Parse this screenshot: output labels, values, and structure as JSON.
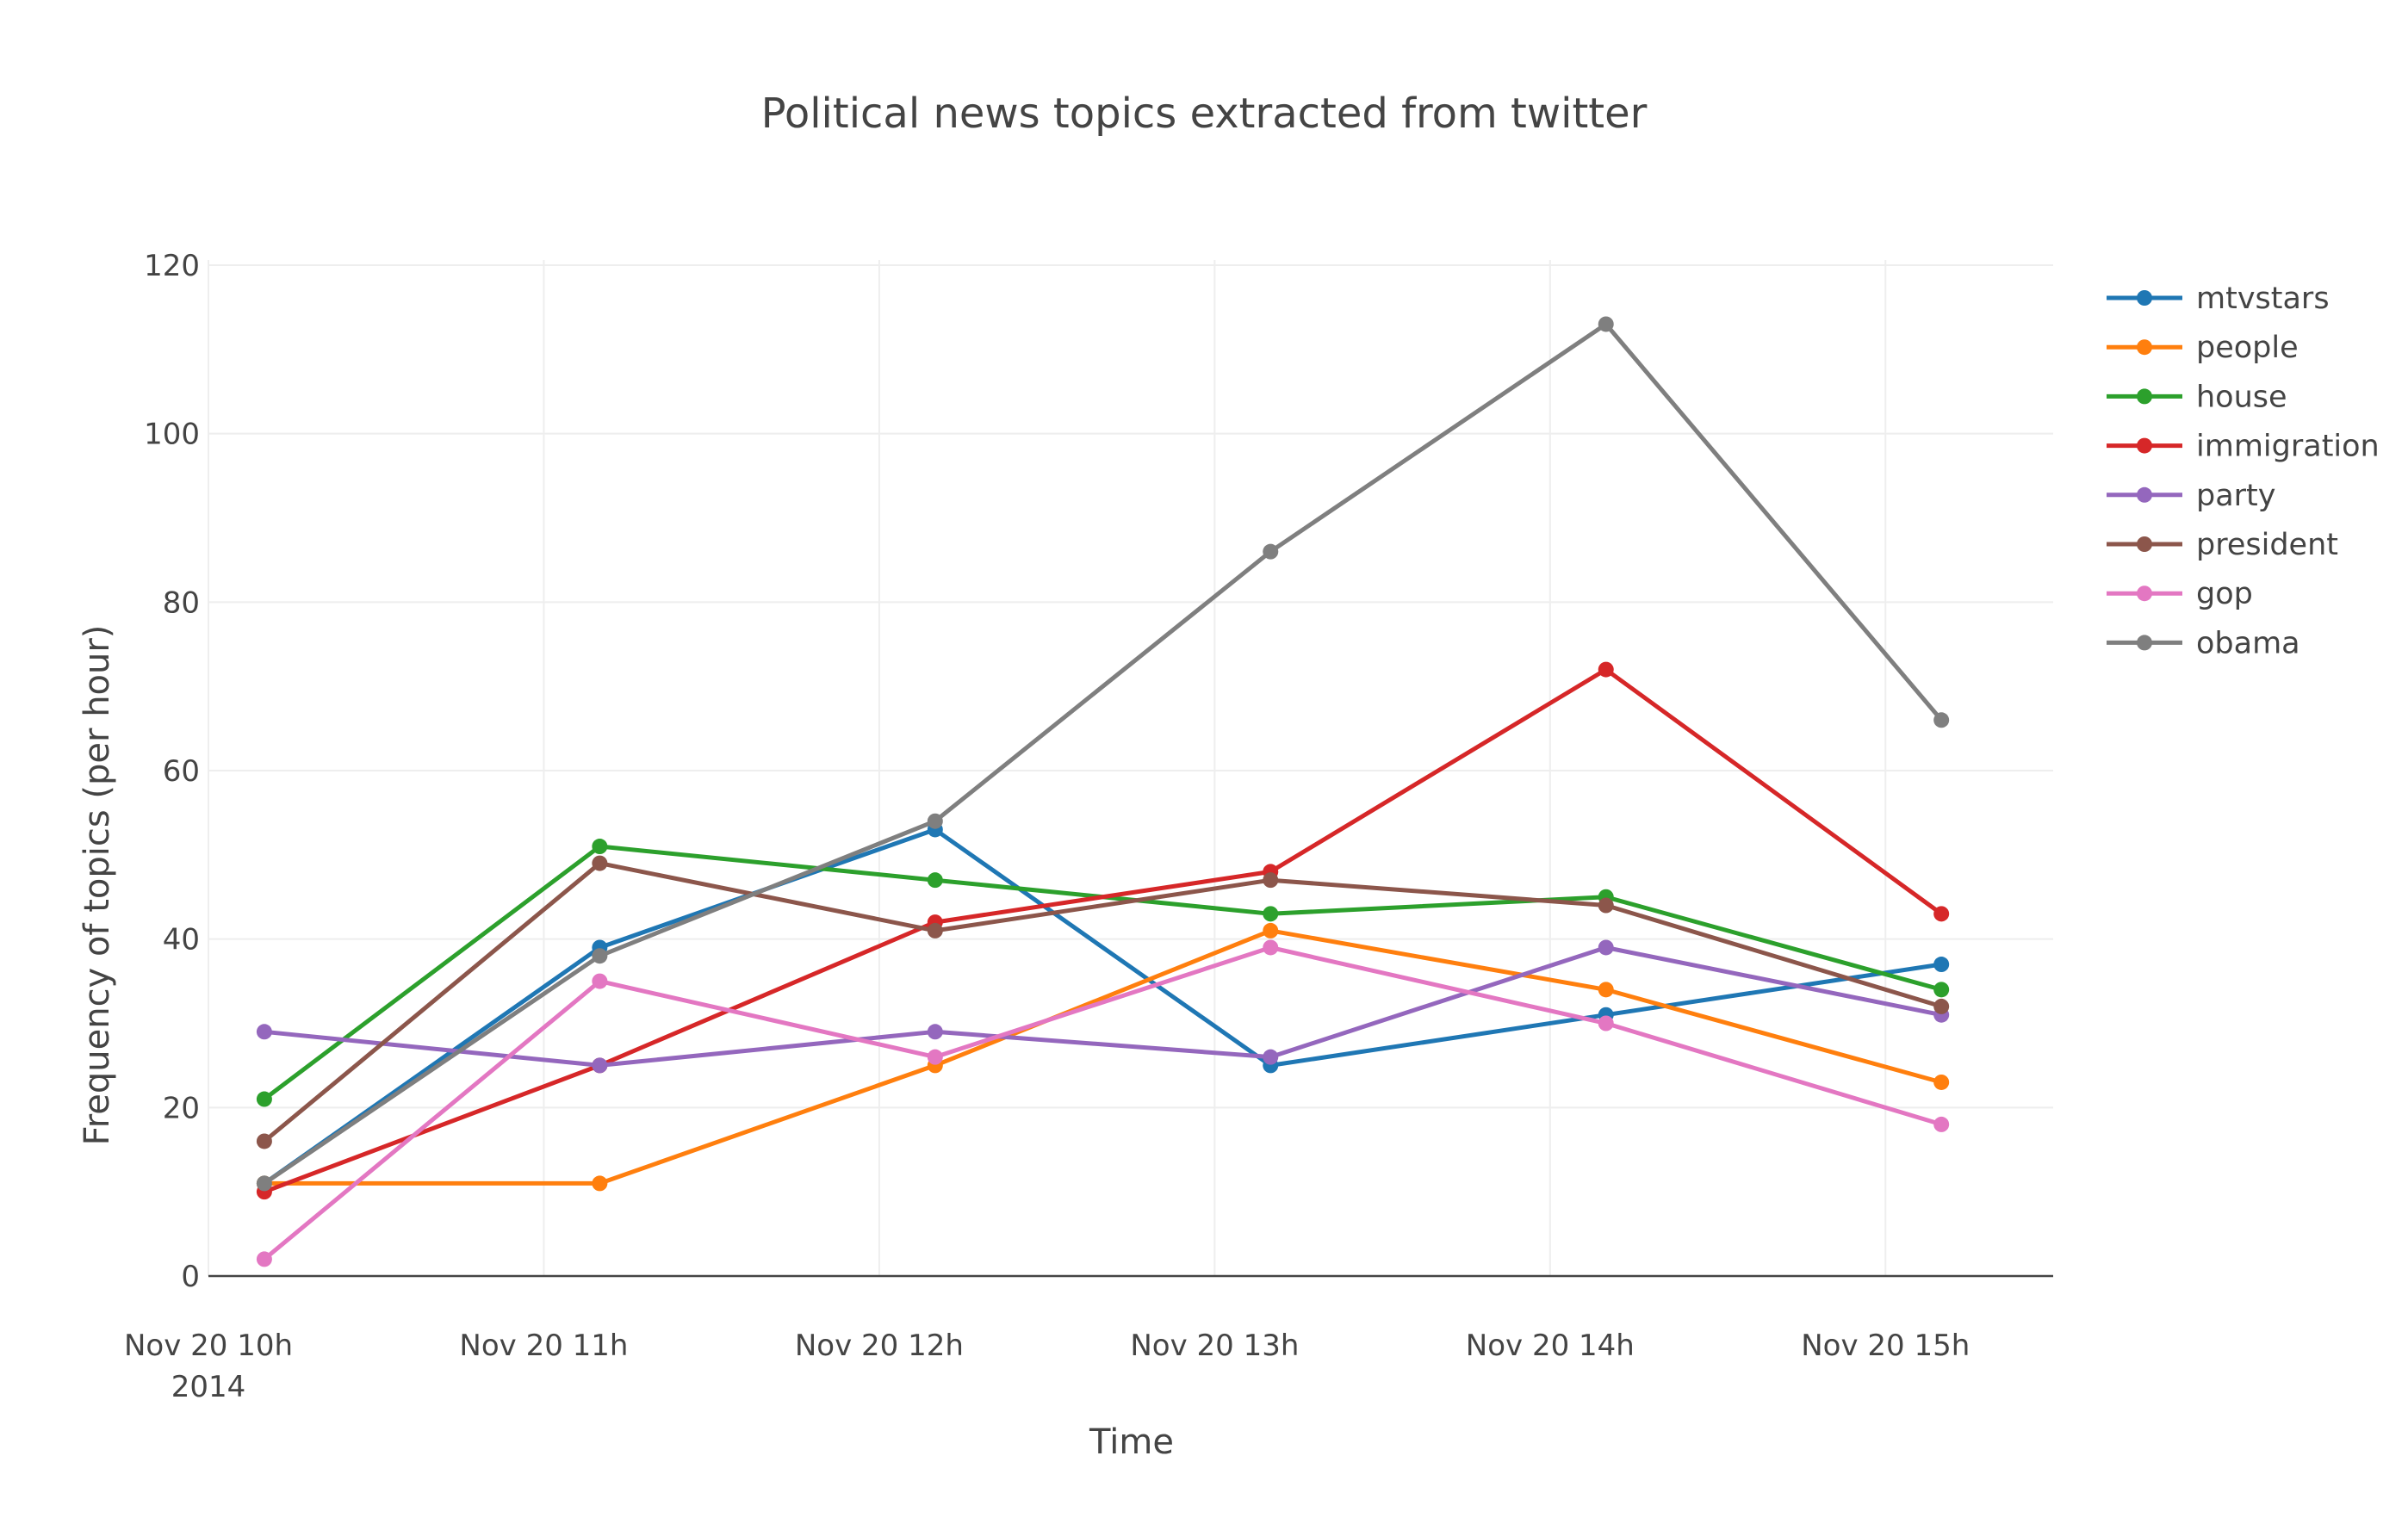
{
  "chart_data": {
    "type": "line",
    "title": "Political news topics extracted from twitter",
    "xlabel": "Time",
    "ylabel": "Frequency of topics (per hour)",
    "x": [
      "2014-11-20 10:10",
      "2014-11-20 11:10",
      "2014-11-20 12:10",
      "2014-11-20 13:10",
      "2014-11-20 14:10",
      "2014-11-20 15:10"
    ],
    "xlim": [
      "2014-11-20 10:00",
      "2014-11-20 15:30"
    ],
    "ylim": [
      0,
      120
    ],
    "x_ticks": [
      {
        "value": "2014-11-20 10:00",
        "label": "Nov 20 10h",
        "sublabel": "2014"
      },
      {
        "value": "2014-11-20 11:00",
        "label": "Nov 20 11h",
        "sublabel": ""
      },
      {
        "value": "2014-11-20 12:00",
        "label": "Nov 20 12h",
        "sublabel": ""
      },
      {
        "value": "2014-11-20 13:00",
        "label": "Nov 20 13h",
        "sublabel": ""
      },
      {
        "value": "2014-11-20 14:00",
        "label": "Nov 20 14h",
        "sublabel": ""
      },
      {
        "value": "2014-11-20 15:00",
        "label": "Nov 20 15h",
        "sublabel": ""
      }
    ],
    "y_ticks": [
      0,
      20,
      40,
      60,
      80,
      100,
      120
    ],
    "grid": true,
    "legend_position": "top-right",
    "series": [
      {
        "name": "mtvstars",
        "color": "#1f77b4",
        "values": [
          11,
          39,
          53,
          25,
          31,
          37
        ]
      },
      {
        "name": "people",
        "color": "#ff7f0e",
        "values": [
          11,
          11,
          25,
          41,
          34,
          23
        ]
      },
      {
        "name": "house",
        "color": "#2ca02c",
        "values": [
          21,
          51,
          47,
          43,
          45,
          34
        ]
      },
      {
        "name": "immigration",
        "color": "#d62728",
        "values": [
          10,
          25,
          42,
          48,
          72,
          43
        ]
      },
      {
        "name": "party",
        "color": "#9467bd",
        "values": [
          29,
          25,
          29,
          26,
          39,
          31
        ]
      },
      {
        "name": "president",
        "color": "#8c564b",
        "values": [
          16,
          49,
          41,
          47,
          44,
          32
        ]
      },
      {
        "name": "gop",
        "color": "#e377c2",
        "values": [
          2,
          35,
          26,
          39,
          30,
          18
        ]
      },
      {
        "name": "obama",
        "color": "#7f7f7f",
        "values": [
          11,
          38,
          54,
          86,
          113,
          66
        ]
      }
    ]
  }
}
